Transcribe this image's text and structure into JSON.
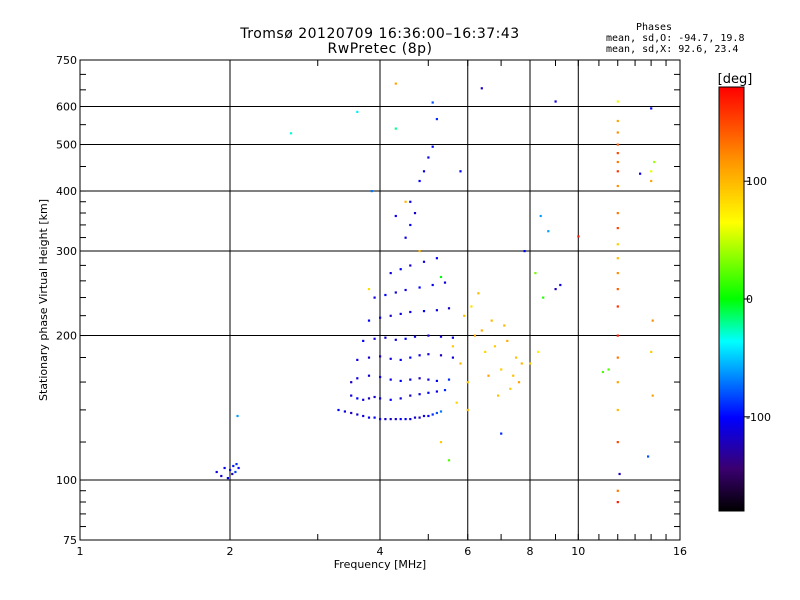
{
  "header": {
    "title": "Tromsø 20120709 16:36:00–16:37:43",
    "subtitle": "RwPretec (8p)"
  },
  "phase_info": {
    "heading": "Phases",
    "line_o": "mean, sd,O:  -94.7, 19.8",
    "line_x": "mean, sd,X:  92.6, 23.4"
  },
  "colors": {
    "frame": "#000000",
    "grid": "#000000",
    "background": "#ffffff"
  },
  "chart_data": {
    "type": "scatter",
    "title": "Tromsø 20120709 16:36:00–16:37:43",
    "subtitle": "RwPretec (8p)",
    "xlabel": "Frequency [MHz]",
    "ylabel": "Stationary phase Virtual Height [km]",
    "xscale": "log",
    "yscale": "log",
    "xlim": [
      1,
      16
    ],
    "ylim": [
      75,
      750
    ],
    "xticks": [
      1,
      2,
      4,
      6,
      8,
      10,
      16
    ],
    "xtick_labels": [
      "1",
      "2",
      "4",
      "6",
      "8",
      "10",
      "16"
    ],
    "yticks": [
      75,
      100,
      200,
      300,
      400,
      500,
      600,
      750
    ],
    "ytick_labels": [
      "75",
      "100",
      "200",
      "300",
      "400",
      "500",
      "600",
      "750"
    ],
    "grid": true,
    "colorbar": {
      "label": "[deg]",
      "range": [
        -180,
        180
      ],
      "ticks": [
        -100,
        0,
        100
      ],
      "tick_labels": [
        "-100",
        "0",
        "100"
      ],
      "colormap": "rainbow"
    },
    "series": [
      {
        "values": [
          [
            1.88,
            104,
            -110
          ],
          [
            1.92,
            102,
            -115
          ],
          [
            1.95,
            106,
            -105
          ],
          [
            2.0,
            105,
            -100
          ],
          [
            2.03,
            107,
            -95
          ],
          [
            2.06,
            108,
            -90
          ],
          [
            2.08,
            106,
            -100
          ],
          [
            2.02,
            103,
            -120
          ],
          [
            1.98,
            101,
            -110
          ],
          [
            2.05,
            104,
            -85
          ],
          [
            2.07,
            136,
            -60
          ],
          [
            2.65,
            528,
            -30
          ],
          [
            3.3,
            140,
            -100
          ],
          [
            3.4,
            139,
            -110
          ],
          [
            3.5,
            138,
            -120
          ],
          [
            3.6,
            137,
            -115
          ],
          [
            3.7,
            136,
            -110
          ],
          [
            3.8,
            135,
            -105
          ],
          [
            3.9,
            135,
            -100
          ],
          [
            4.0,
            134,
            -110
          ],
          [
            4.1,
            134,
            -115
          ],
          [
            4.2,
            134,
            -120
          ],
          [
            4.3,
            134,
            -110
          ],
          [
            4.4,
            134,
            -105
          ],
          [
            4.5,
            134,
            -100
          ],
          [
            4.6,
            134,
            -110
          ],
          [
            4.7,
            135,
            -115
          ],
          [
            4.8,
            135,
            -120
          ],
          [
            4.9,
            136,
            -110
          ],
          [
            5.0,
            136,
            -100
          ],
          [
            5.1,
            137,
            -90
          ],
          [
            5.2,
            138,
            -80
          ],
          [
            5.3,
            139,
            -70
          ],
          [
            3.5,
            150,
            -110
          ],
          [
            3.6,
            148,
            -100
          ],
          [
            3.7,
            147,
            -110
          ],
          [
            3.8,
            148,
            -120
          ],
          [
            3.9,
            149,
            -115
          ],
          [
            4.0,
            148,
            -110
          ],
          [
            4.2,
            147,
            -100
          ],
          [
            4.4,
            148,
            -110
          ],
          [
            4.6,
            150,
            -120
          ],
          [
            4.8,
            151,
            -110
          ],
          [
            5.0,
            152,
            -100
          ],
          [
            5.2,
            153,
            -105
          ],
          [
            5.4,
            154,
            -90
          ],
          [
            3.5,
            160,
            -120
          ],
          [
            3.6,
            163,
            -110
          ],
          [
            3.8,
            165,
            -115
          ],
          [
            4.0,
            164,
            -110
          ],
          [
            4.2,
            162,
            -105
          ],
          [
            4.4,
            161,
            -100
          ],
          [
            4.6,
            162,
            -110
          ],
          [
            4.8,
            163,
            -120
          ],
          [
            5.0,
            162,
            -110
          ],
          [
            5.2,
            161,
            -100
          ],
          [
            5.5,
            162,
            -90
          ],
          [
            3.6,
            178,
            -110
          ],
          [
            3.8,
            180,
            -115
          ],
          [
            4.0,
            181,
            -120
          ],
          [
            4.2,
            179,
            -110
          ],
          [
            4.4,
            178,
            -105
          ],
          [
            4.6,
            180,
            -100
          ],
          [
            4.8,
            182,
            -110
          ],
          [
            5.0,
            183,
            -115
          ],
          [
            5.3,
            182,
            -120
          ],
          [
            5.6,
            180,
            -110
          ],
          [
            3.7,
            195,
            -100
          ],
          [
            3.9,
            197,
            -110
          ],
          [
            4.1,
            198,
            -115
          ],
          [
            4.3,
            196,
            -110
          ],
          [
            4.5,
            197,
            -100
          ],
          [
            4.7,
            199,
            -110
          ],
          [
            5.0,
            200,
            -120
          ],
          [
            5.3,
            199,
            -110
          ],
          [
            5.6,
            198,
            -105
          ],
          [
            3.8,
            215,
            -100
          ],
          [
            4.0,
            218,
            -110
          ],
          [
            4.2,
            220,
            -115
          ],
          [
            4.4,
            222,
            -110
          ],
          [
            4.6,
            224,
            -105
          ],
          [
            4.9,
            225,
            -100
          ],
          [
            5.2,
            226,
            -110
          ],
          [
            5.5,
            228,
            -115
          ],
          [
            3.9,
            240,
            -110
          ],
          [
            4.1,
            243,
            -100
          ],
          [
            4.3,
            246,
            -115
          ],
          [
            4.5,
            249,
            -110
          ],
          [
            4.8,
            252,
            -100
          ],
          [
            5.1,
            255,
            -105
          ],
          [
            5.4,
            258,
            -110
          ],
          [
            4.2,
            270,
            -110
          ],
          [
            4.4,
            275,
            -100
          ],
          [
            4.6,
            280,
            -115
          ],
          [
            4.9,
            285,
            -110
          ],
          [
            5.2,
            290,
            -100
          ],
          [
            4.5,
            320,
            -110
          ],
          [
            4.6,
            340,
            -100
          ],
          [
            4.7,
            360,
            -115
          ],
          [
            4.6,
            380,
            -110
          ],
          [
            4.8,
            420,
            -100
          ],
          [
            4.9,
            440,
            -110
          ],
          [
            5.0,
            470,
            -105
          ],
          [
            5.1,
            495,
            -100
          ],
          [
            5.2,
            565,
            -90
          ],
          [
            5.1,
            612,
            -80
          ],
          [
            6.4,
            655,
            -120
          ],
          [
            9.0,
            615,
            -110
          ],
          [
            5.8,
            440,
            -100
          ],
          [
            4.3,
            355,
            -105
          ],
          [
            8.4,
            355,
            -60
          ],
          [
            3.85,
            400,
            -70
          ],
          [
            3.6,
            585,
            -40
          ],
          [
            5.6,
            190,
            90
          ],
          [
            5.8,
            175,
            100
          ],
          [
            6.0,
            160,
            95
          ],
          [
            6.2,
            200,
            110
          ],
          [
            6.5,
            185,
            85
          ],
          [
            6.7,
            215,
            100
          ],
          [
            7.0,
            170,
            90
          ],
          [
            7.2,
            195,
            105
          ],
          [
            7.5,
            180,
            95
          ],
          [
            6.1,
            230,
            80
          ],
          [
            6.3,
            245,
            100
          ],
          [
            6.6,
            165,
            110
          ],
          [
            6.9,
            150,
            95
          ],
          [
            7.3,
            155,
            90
          ],
          [
            7.7,
            175,
            100
          ],
          [
            5.7,
            145,
            85
          ],
          [
            6.0,
            140,
            100
          ],
          [
            5.9,
            220,
            95
          ],
          [
            6.4,
            205,
            105
          ],
          [
            6.8,
            190,
            90
          ],
          [
            7.1,
            210,
            100
          ],
          [
            7.4,
            165,
            95
          ],
          [
            7.6,
            160,
            110
          ],
          [
            8.0,
            175,
            90
          ],
          [
            8.3,
            185,
            70
          ],
          [
            5.3,
            120,
            90
          ],
          [
            4.3,
            670,
            110
          ],
          [
            4.5,
            380,
            100
          ],
          [
            4.8,
            300,
            100
          ],
          [
            3.8,
            250,
            80
          ],
          [
            12.0,
            560,
            110
          ],
          [
            12.0,
            530,
            120
          ],
          [
            12.0,
            500,
            140
          ],
          [
            12.0,
            480,
            150
          ],
          [
            12.0,
            460,
            130
          ],
          [
            12.0,
            440,
            160
          ],
          [
            12.0,
            410,
            120
          ],
          [
            12.0,
            360,
            130
          ],
          [
            12.0,
            335,
            150
          ],
          [
            12.0,
            310,
            90
          ],
          [
            12.0,
            290,
            100
          ],
          [
            12.0,
            270,
            120
          ],
          [
            12.0,
            250,
            140
          ],
          [
            12.0,
            230,
            160
          ],
          [
            12.0,
            200,
            170
          ],
          [
            12.0,
            180,
            130
          ],
          [
            12.0,
            160,
            110
          ],
          [
            12.0,
            140,
            100
          ],
          [
            12.0,
            120,
            150
          ],
          [
            12.0,
            95,
            130
          ],
          [
            12.0,
            90,
            170
          ],
          [
            12.0,
            615,
            60
          ],
          [
            11.5,
            170,
            20
          ],
          [
            14.0,
            440,
            60
          ],
          [
            14.2,
            460,
            40
          ],
          [
            14.0,
            420,
            110
          ],
          [
            14.1,
            215,
            120
          ],
          [
            14.0,
            185,
            90
          ],
          [
            14.1,
            150,
            110
          ],
          [
            13.8,
            112,
            -80
          ],
          [
            14.0,
            595,
            -100
          ],
          [
            13.3,
            435,
            -110
          ],
          [
            12.1,
            103,
            -120
          ],
          [
            10.0,
            322,
            170
          ],
          [
            11.2,
            168,
            20
          ],
          [
            8.2,
            270,
            30
          ],
          [
            8.7,
            330,
            -60
          ],
          [
            8.5,
            240,
            10
          ],
          [
            5.3,
            265,
            0
          ],
          [
            4.3,
            540,
            -20
          ],
          [
            5.5,
            110,
            20
          ],
          [
            9.2,
            255,
            -110
          ],
          [
            7.0,
            125,
            -90
          ],
          [
            7.8,
            300,
            -100
          ],
          [
            9.0,
            250,
            -120
          ]
        ]
      }
    ]
  }
}
